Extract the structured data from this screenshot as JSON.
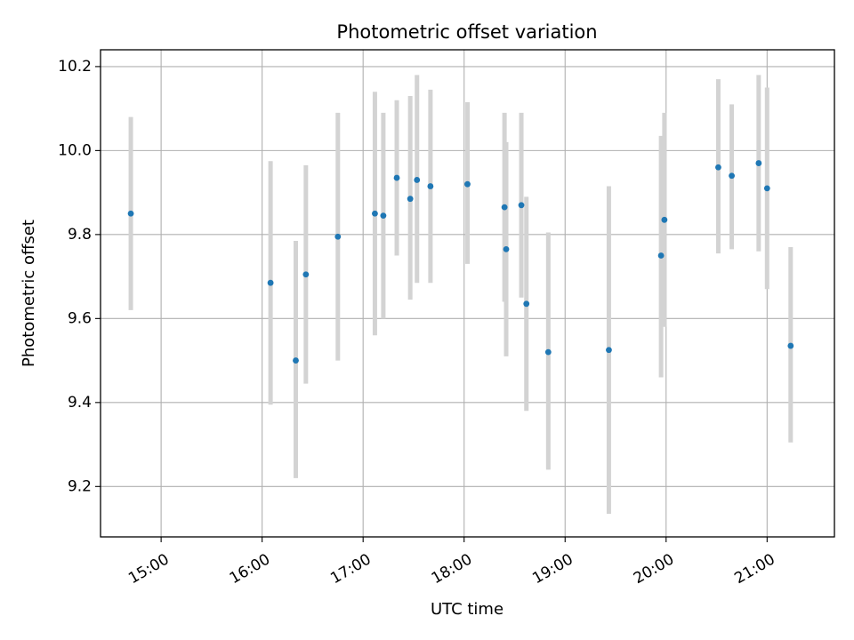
{
  "chart_data": {
    "type": "scatter",
    "title": "Photometric offset variation",
    "xlabel": "UTC time",
    "ylabel": "Photometric offset",
    "grid": true,
    "legend": "none",
    "xlim": [
      "14:24",
      "21:40"
    ],
    "ylim": [
      9.08,
      10.24
    ],
    "x_ticks": [
      "15:00",
      "16:00",
      "17:00",
      "18:00",
      "19:00",
      "20:00",
      "21:00"
    ],
    "y_ticks": [
      "9.2",
      "9.4",
      "9.6",
      "9.8",
      "10.0",
      "10.2"
    ],
    "marker_color": "#1f77b4",
    "errorbar_color": "#d3d3d3",
    "points": [
      {
        "x": "14:42",
        "y": 9.85,
        "low": 9.62,
        "high": 10.08
      },
      {
        "x": "16:05",
        "y": 9.685,
        "low": 9.395,
        "high": 9.975
      },
      {
        "x": "16:20",
        "y": 9.5,
        "low": 9.22,
        "high": 9.785
      },
      {
        "x": "16:26",
        "y": 9.705,
        "low": 9.445,
        "high": 9.965
      },
      {
        "x": "16:45",
        "y": 9.795,
        "low": 9.5,
        "high": 10.09
      },
      {
        "x": "17:07",
        "y": 9.85,
        "low": 9.56,
        "high": 10.14
      },
      {
        "x": "17:12",
        "y": 9.845,
        "low": 9.6,
        "high": 10.09
      },
      {
        "x": "17:20",
        "y": 9.935,
        "low": 9.75,
        "high": 10.12
      },
      {
        "x": "17:28",
        "y": 9.885,
        "low": 9.645,
        "high": 10.13
      },
      {
        "x": "17:32",
        "y": 9.93,
        "low": 9.685,
        "high": 10.18
      },
      {
        "x": "17:40",
        "y": 9.915,
        "low": 9.685,
        "high": 10.145
      },
      {
        "x": "18:02",
        "y": 9.92,
        "low": 9.73,
        "high": 10.115
      },
      {
        "x": "18:24",
        "y": 9.865,
        "low": 9.64,
        "high": 10.09
      },
      {
        "x": "18:25",
        "y": 9.765,
        "low": 9.51,
        "high": 10.02
      },
      {
        "x": "18:34",
        "y": 9.87,
        "low": 9.65,
        "high": 10.09
      },
      {
        "x": "18:37",
        "y": 9.635,
        "low": 9.38,
        "high": 9.89
      },
      {
        "x": "18:50",
        "y": 9.52,
        "low": 9.24,
        "high": 9.805
      },
      {
        "x": "19:26",
        "y": 9.525,
        "low": 9.135,
        "high": 9.915
      },
      {
        "x": "19:57",
        "y": 9.75,
        "low": 9.46,
        "high": 10.035
      },
      {
        "x": "19:59",
        "y": 9.835,
        "low": 9.58,
        "high": 10.09
      },
      {
        "x": "20:31",
        "y": 9.96,
        "low": 9.755,
        "high": 10.17
      },
      {
        "x": "20:39",
        "y": 9.94,
        "low": 9.765,
        "high": 10.11
      },
      {
        "x": "20:55",
        "y": 9.97,
        "low": 9.76,
        "high": 10.18
      },
      {
        "x": "21:00",
        "y": 9.91,
        "low": 9.67,
        "high": 10.15
      },
      {
        "x": "21:14",
        "y": 9.535,
        "low": 9.305,
        "high": 9.77
      }
    ]
  }
}
